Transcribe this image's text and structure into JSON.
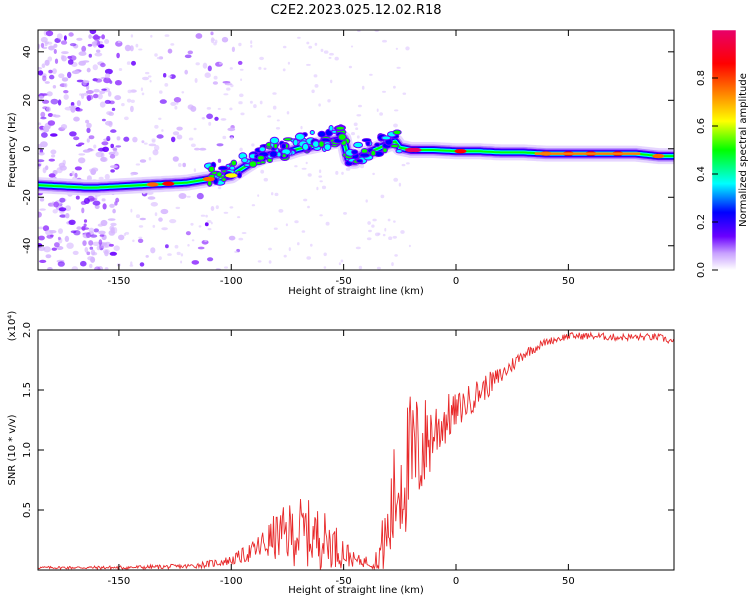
{
  "title": "C2E2.2023.025.12.02.R18",
  "chart_data": [
    {
      "type": "heatmap",
      "name": "spectrogram",
      "xlabel": "Height of straight line (km)",
      "ylabel": "Frequency (Hz)",
      "xlim": [
        -186,
        97
      ],
      "ylim": [
        -50,
        49
      ],
      "xticks": [
        -150,
        -100,
        -50,
        0,
        50
      ],
      "yticks": [
        -40,
        -20,
        0,
        20,
        40
      ],
      "colorbar": {
        "label": "Normalized spectral amplitude",
        "range": [
          0.0,
          1.0
        ],
        "ticks": [
          "0.0",
          "0.2",
          "0.4",
          "0.6",
          "0.8"
        ],
        "stops": [
          "#ffffff",
          "#6a00ff",
          "#0000ff",
          "#00ffff",
          "#00ff00",
          "#ffff00",
          "#ff6600",
          "#ff0000",
          "#e8006a"
        ]
      },
      "ridge": {
        "x": [
          -186,
          -165,
          -160,
          -150,
          -140,
          -130,
          -120,
          -110,
          -100,
          -95,
          -90,
          -85,
          -80,
          -75,
          -70,
          -65,
          -60,
          -55,
          -50,
          -48,
          -46,
          -45,
          -44,
          -40,
          -35,
          -30,
          -27,
          -25,
          -20,
          -15,
          -10,
          0,
          10,
          20,
          30,
          40,
          50,
          60,
          70,
          80,
          90,
          97
        ],
        "y": [
          -15,
          -16,
          -16,
          -15.5,
          -15,
          -14.5,
          -14,
          -12.5,
          -11,
          -8,
          -5,
          -3,
          -2,
          -1.5,
          0,
          1,
          2,
          3,
          4,
          -4,
          -5,
          -5,
          -4,
          -2,
          0,
          2,
          3,
          0.5,
          -0.5,
          -0.5,
          -0.5,
          -1,
          -1,
          -1.5,
          -1.5,
          -2,
          -2,
          -2,
          -2,
          -2,
          -3,
          -3
        ]
      }
    },
    {
      "type": "line",
      "name": "snr",
      "xlabel": "Height of straight line (km)",
      "ylabel": "SNR (10 * v/v)",
      "multiplier": "(x10⁴)",
      "xlim": [
        -186,
        97
      ],
      "ylim": [
        0,
        2.0
      ],
      "xticks": [
        -150,
        -100,
        -50,
        0,
        50
      ],
      "yticks": [
        0.5,
        1.0,
        1.5,
        2.0
      ],
      "ytick_labels": [
        "0.5",
        "1.0",
        "1.5",
        "2.0"
      ],
      "color": "#e8292a",
      "trend": {
        "x": [
          -186,
          -150,
          -120,
          -110,
          -100,
          -95,
          -90,
          -85,
          -80,
          -75,
          -70,
          -65,
          -60,
          -55,
          -50,
          -45,
          -40,
          -35,
          -30,
          -28,
          -25,
          -22,
          -20,
          -15,
          -10,
          -5,
          0,
          5,
          10,
          20,
          30,
          40,
          50,
          60,
          70,
          80,
          90,
          97
        ],
        "y": [
          0.02,
          0.02,
          0.03,
          0.05,
          0.08,
          0.12,
          0.16,
          0.22,
          0.28,
          0.3,
          0.32,
          0.3,
          0.26,
          0.22,
          0.15,
          0.08,
          0.07,
          0.1,
          0.3,
          0.55,
          0.75,
          0.85,
          0.9,
          1.02,
          1.15,
          1.25,
          1.32,
          1.4,
          1.48,
          1.62,
          1.8,
          1.9,
          1.95,
          1.95,
          1.94,
          1.94,
          1.94,
          1.9
        ]
      },
      "noise": {
        "x": [
          -186,
          -120,
          -100,
          -90,
          -80,
          -70,
          -60,
          -50,
          -45,
          -40,
          -35,
          -30,
          -25,
          -20,
          -15,
          -10,
          0,
          10,
          20,
          30,
          40,
          97
        ],
        "amp": [
          0.01,
          0.02,
          0.04,
          0.09,
          0.2,
          0.3,
          0.26,
          0.14,
          0.05,
          0.05,
          0.12,
          0.4,
          0.55,
          0.6,
          0.45,
          0.3,
          0.15,
          0.12,
          0.08,
          0.05,
          0.03,
          0.03
        ]
      }
    }
  ]
}
